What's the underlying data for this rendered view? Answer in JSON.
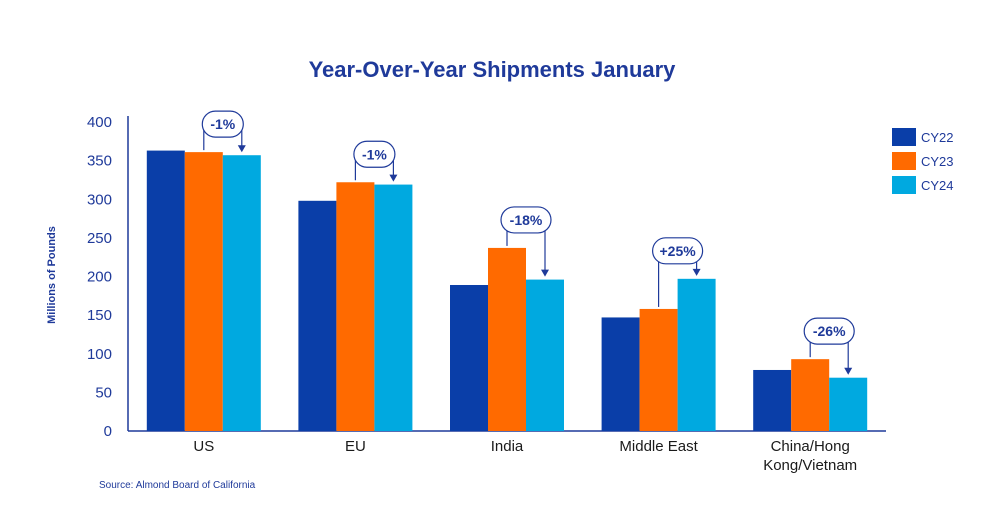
{
  "colors": {
    "text": "#1f3a9a",
    "axis": "#1f3a9a",
    "series": [
      "#0a3ea8",
      "#ff6a00",
      "#00a9e0"
    ]
  },
  "source": "Source: Almond Board of California",
  "chart_data": {
    "type": "bar",
    "title": "Year-Over-Year Shipments January",
    "xlabel": "",
    "ylabel": "Millions of Pounds",
    "ylim": [
      0,
      400
    ],
    "yticks": [
      0,
      50,
      100,
      150,
      200,
      250,
      300,
      350,
      400
    ],
    "grid": false,
    "legend_position": "top-right",
    "categories": [
      "US",
      "EU",
      "India",
      "Middle East",
      "China/Hong Kong/Vietnam"
    ],
    "category_label_lines": [
      [
        "US"
      ],
      [
        "EU"
      ],
      [
        "India"
      ],
      [
        "Middle East"
      ],
      [
        "China/Hong",
        "Kong/Vietnam"
      ]
    ],
    "series": [
      {
        "name": "CY22",
        "values": [
          363,
          298,
          189,
          147,
          79
        ]
      },
      {
        "name": "CY23",
        "values": [
          361,
          322,
          237,
          158,
          93
        ]
      },
      {
        "name": "CY24",
        "values": [
          357,
          319,
          196,
          197,
          69
        ]
      }
    ],
    "annotations": [
      "-1%",
      "-1%",
      "-18%",
      "+25%",
      "-26%"
    ]
  }
}
